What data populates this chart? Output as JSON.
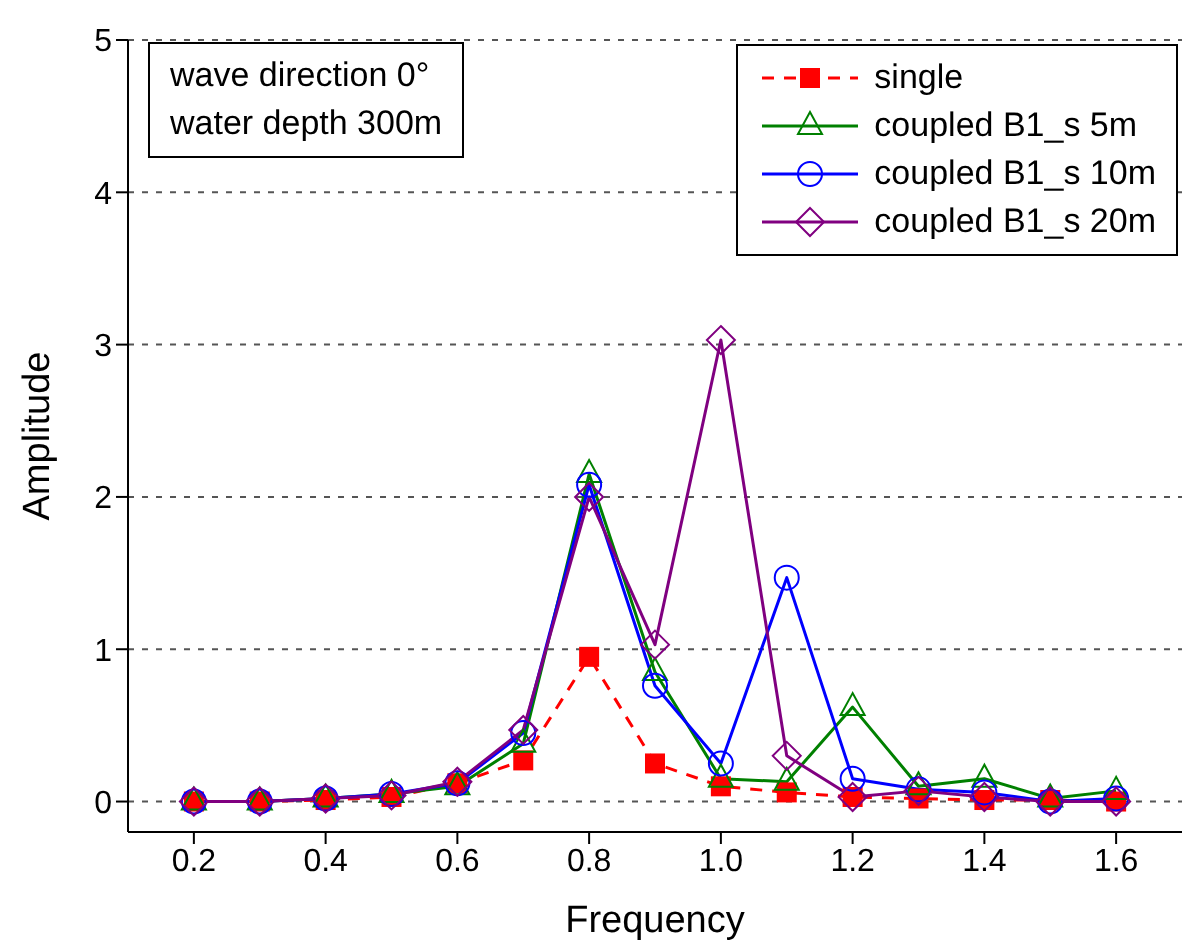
{
  "chart_data": {
    "type": "line",
    "xlabel": "Frequency",
    "ylabel": "Amplitude",
    "annotations": [
      "wave direction 0°",
      "water depth 300m"
    ],
    "x": [
      0.2,
      0.3,
      0.4,
      0.5,
      0.6,
      0.7,
      0.8,
      0.9,
      1.0,
      1.1,
      1.2,
      1.3,
      1.4,
      1.5,
      1.6
    ],
    "series": [
      {
        "name": "single",
        "color": "#ff0000",
        "marker": "square",
        "line_style": "dashed",
        "values": [
          0,
          0,
          0.01,
          0.03,
          0.12,
          0.27,
          0.95,
          0.25,
          0.1,
          0.06,
          0.03,
          0.02,
          0.01,
          0.01,
          0
        ]
      },
      {
        "name": "coupled B1_s 5m",
        "color": "#008000",
        "marker": "triangle",
        "line_style": "solid",
        "values": [
          0,
          0,
          0.02,
          0.05,
          0.1,
          0.38,
          2.15,
          0.85,
          0.15,
          0.13,
          0.62,
          0.1,
          0.15,
          0.02,
          0.07
        ]
      },
      {
        "name": "coupled B1_s 10m",
        "color": "#0000ff",
        "marker": "circle",
        "line_style": "solid",
        "values": [
          0,
          0,
          0.02,
          0.05,
          0.12,
          0.45,
          2.08,
          0.76,
          0.25,
          1.47,
          0.15,
          0.08,
          0.06,
          0,
          0.02
        ]
      },
      {
        "name": "coupled B1_s 20m",
        "color": "#800080",
        "marker": "diamond",
        "line_style": "solid",
        "values": [
          0,
          0,
          0.02,
          0.04,
          0.13,
          0.47,
          2,
          1.03,
          3.03,
          0.3,
          0.03,
          0.07,
          0.03,
          0,
          0
        ]
      }
    ],
    "xlim": [
      0.1,
      1.7
    ],
    "xticks": [
      {
        "value": 0.2,
        "label": "0.2"
      },
      {
        "value": 0.4,
        "label": "0.4"
      },
      {
        "value": 0.6,
        "label": "0.6"
      },
      {
        "value": 0.8,
        "label": "0.8"
      },
      {
        "value": 1.0,
        "label": "1.0"
      },
      {
        "value": 1.2,
        "label": "1.2"
      },
      {
        "value": 1.4,
        "label": "1.4"
      },
      {
        "value": 1.6,
        "label": "1.6"
      }
    ],
    "ylim": [
      -0.2,
      5
    ],
    "yticks": [
      0,
      1,
      2,
      3,
      4,
      5
    ],
    "grid": "y",
    "legend": "top right"
  }
}
